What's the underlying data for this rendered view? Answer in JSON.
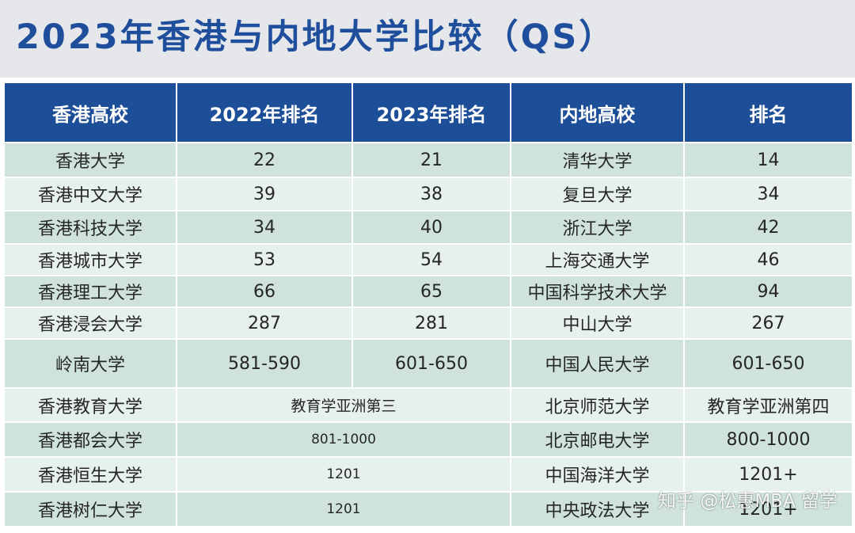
{
  "title": "2023年香港与内地大学比较（QS）",
  "headers": [
    "香港高校",
    "2022年排名",
    "2023年排名",
    "内地高校",
    "排名"
  ],
  "rows": [
    {
      "hk": "香港大学",
      "r2022": "22",
      "r2023": "21",
      "ml": "清华大学",
      "mlrank": "14"
    },
    {
      "hk": "香港中文大学",
      "r2022": "39",
      "r2023": "38",
      "ml": "复旦大学",
      "mlrank": "34"
    },
    {
      "hk": "香港科技大学",
      "r2022": "34",
      "r2023": "40",
      "ml": "浙江大学",
      "mlrank": "42"
    },
    {
      "hk": "香港城市大学",
      "r2022": "53",
      "r2023": "54",
      "ml": "上海交通大学",
      "mlrank": "46"
    },
    {
      "hk": "香港理工大学",
      "r2022": "66",
      "r2023": "65",
      "ml": "中国科学技术大学",
      "mlrank": "94"
    },
    {
      "hk": "香港浸会大学",
      "r2022": "287",
      "r2023": "281",
      "ml": "中山大学",
      "mlrank": "267"
    },
    {
      "hk": "岭南大学",
      "r2022": "581-590",
      "r2023": "601-650",
      "ml": "中国人民大学",
      "mlrank": "601-650"
    }
  ],
  "merged_rows": [
    {
      "hk": "香港教育大学",
      "rank": "教育学亚洲第三",
      "ml": "北京师范大学",
      "mlrank": "教育学亚洲第四"
    },
    {
      "hk": "香港都会大学",
      "rank": "801-1000",
      "ml": "北京邮电大学",
      "mlrank": "800-1000"
    },
    {
      "hk": "香港恒生大学",
      "rank": "1201",
      "ml": "中国海洋大学",
      "mlrank": "1201+"
    },
    {
      "hk": "香港树仁大学",
      "rank": "1201",
      "ml": "中央政法大学",
      "mlrank": "1201+"
    }
  ],
  "watermark": "知乎 @松惠MBA 留学",
  "colors": {
    "header_bg": "#1d4f98",
    "title": "#1f4f9c",
    "row_dark": "#cfe3dc",
    "row_light": "#e6f0ec"
  }
}
